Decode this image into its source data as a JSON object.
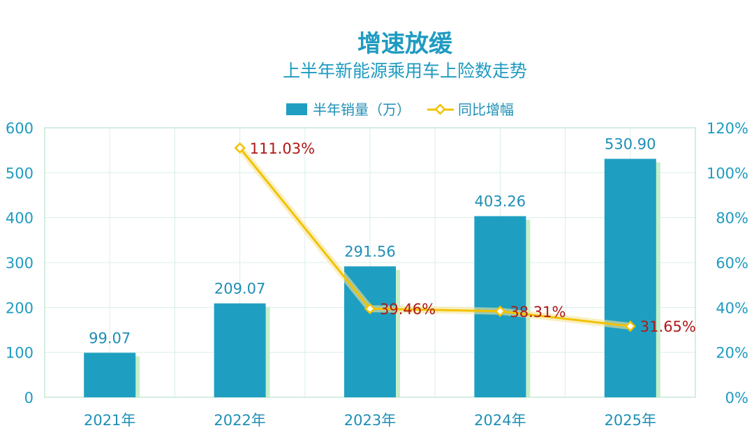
{
  "chart_data": {
    "type": "bar+line",
    "title": "增速放缓",
    "subtitle": "上半年新能源乘用车上险数走势",
    "categories": [
      "2021年",
      "2022年",
      "2023年",
      "2024年",
      "2025年"
    ],
    "series": [
      {
        "name": "半年销量（万）",
        "type": "bar",
        "axis": "left",
        "values": [
          99.07,
          209.07,
          291.56,
          403.26,
          530.9
        ],
        "labels": [
          "99.07",
          "209.07",
          "291.56",
          "403.26",
          "530.90"
        ]
      },
      {
        "name": "同比增幅",
        "type": "line",
        "axis": "right",
        "values": [
          null,
          111.03,
          39.46,
          38.31,
          31.65
        ],
        "labels": [
          "",
          "111.03%",
          "39.46%",
          "38.31%",
          "31.65%"
        ]
      }
    ],
    "y_left": {
      "min": 0,
      "max": 600,
      "ticks": [
        "0",
        "100",
        "200",
        "300",
        "400",
        "500",
        "600"
      ]
    },
    "y_right": {
      "min": 0,
      "max": 120,
      "ticks": [
        "0%",
        "20%",
        "40%",
        "60%",
        "80%",
        "100%",
        "120%"
      ]
    },
    "grid": true,
    "legend": "top-center",
    "colors": {
      "bar": "#1e9fc2",
      "bar_shadow": "#c6efc9",
      "line": "#f2c200",
      "line_glow": "#f7e49a",
      "marker_fill": "#ffffff",
      "pct_label": "#b01818",
      "axis_text": "#1f9bc0",
      "grid": "#d9efe9",
      "frame": "#b9e2cd"
    }
  }
}
